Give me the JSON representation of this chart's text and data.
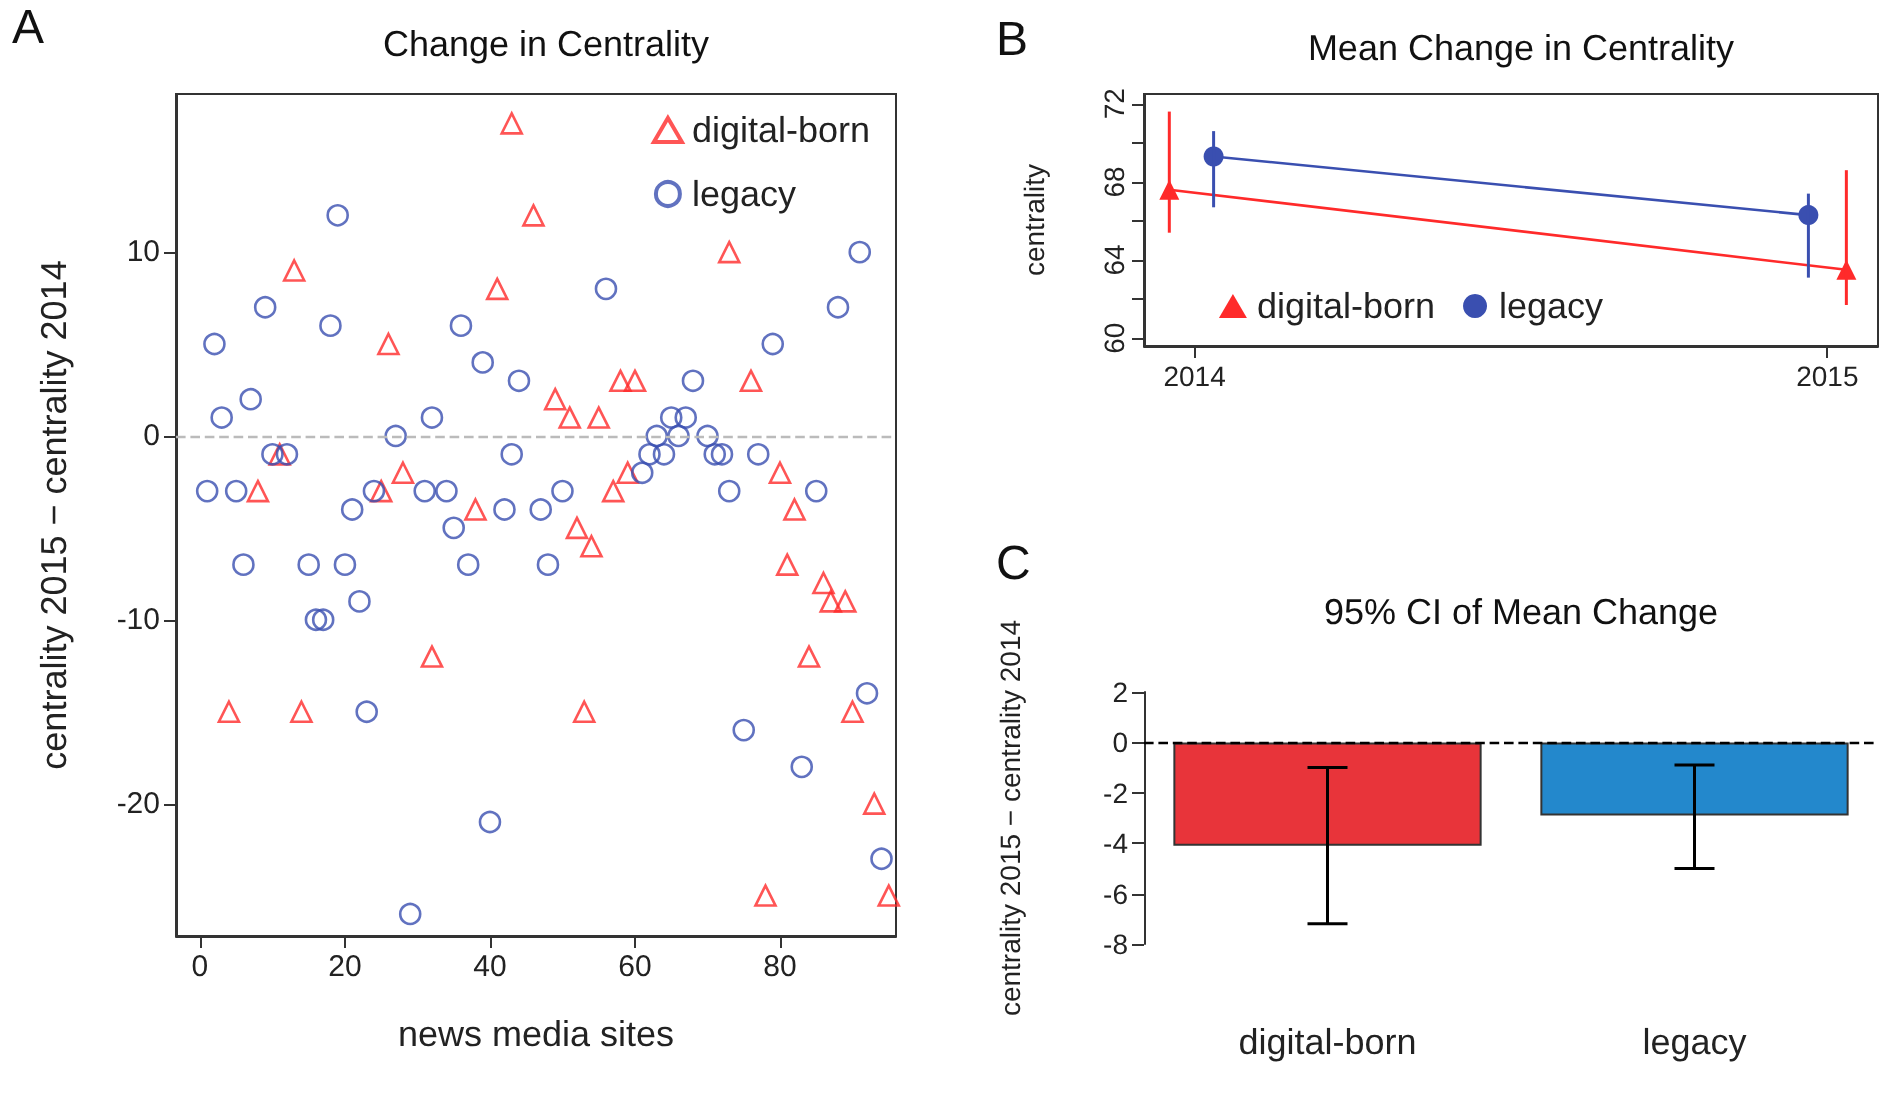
{
  "chart_data": [
    {
      "type": "scatter",
      "title": "Change in Centrality",
      "xlabel": "news media sites",
      "ylabel": "centrality 2015 − centrality 2014",
      "annotations": [
        "A"
      ],
      "xlim": [
        -3.3,
        96
      ],
      "xticks": [
        0,
        20,
        40,
        60,
        80
      ],
      "ylim": [
        -27.2,
        18.6
      ],
      "yticks": [
        -20,
        -10,
        0,
        10
      ],
      "legend": "top right",
      "ref_lines": [
        {
          "axis": "y",
          "value": 0,
          "color": "#bbbbbb",
          "line_style": "dashed"
        }
      ],
      "series": [
        {
          "name": "digital-born",
          "color": "#ff2a2a",
          "marker": "triangle",
          "x": [
            4,
            8,
            11,
            13,
            14,
            25,
            26,
            28,
            32,
            38,
            41,
            43,
            46,
            49,
            51,
            52,
            53,
            54,
            55,
            57,
            58,
            59,
            60,
            73,
            76,
            78,
            80,
            81,
            82,
            84,
            86,
            87,
            89,
            90,
            93,
            95
          ],
          "values": [
            -15,
            -3,
            -1,
            9,
            -15,
            -3,
            5,
            -2,
            -12,
            -4,
            8,
            17,
            12,
            2,
            1,
            -5,
            -15,
            -6,
            1,
            -3,
            3,
            -2,
            3,
            10,
            3,
            -25,
            -2,
            -7,
            -4,
            -12,
            -8,
            -9,
            -9,
            -15,
            -20,
            -25
          ]
        },
        {
          "name": "legacy",
          "color": "#3a4fb0",
          "marker": "circle",
          "x": [
            1,
            2,
            3,
            5,
            6,
            7,
            9,
            10,
            12,
            15,
            16,
            17,
            18,
            19,
            20,
            21,
            22,
            23,
            24,
            27,
            29,
            31,
            32,
            34,
            35,
            36,
            37,
            39,
            40,
            42,
            43,
            44,
            47,
            48,
            50,
            56,
            61,
            62,
            63,
            64,
            65,
            66,
            67,
            68,
            70,
            71,
            72,
            73,
            75,
            77,
            79,
            83,
            85,
            88,
            91,
            92,
            94
          ],
          "values": [
            -3,
            5,
            1,
            -3,
            -7,
            2,
            7,
            -1,
            -1,
            -7,
            -10,
            -10,
            6,
            12,
            -7,
            -4,
            -9,
            -15,
            -3,
            0,
            -26,
            -3,
            1,
            -3,
            -5,
            6,
            -7,
            4,
            -21,
            -4,
            -1,
            3,
            -4,
            -7,
            -3,
            8,
            -2,
            -1,
            0,
            -1,
            1,
            0,
            1,
            3,
            0,
            -1,
            -1,
            -3,
            -16,
            -1,
            5,
            -18,
            -3,
            7,
            10,
            -14,
            -23
          ]
        }
      ]
    },
    {
      "type": "line",
      "title": "Mean Change in Centrality",
      "ylabel": "centrality",
      "annotations": [
        "B"
      ],
      "xlim": [
        2013.92,
        2015.08
      ],
      "xticks": [
        2014,
        2015
      ],
      "ylim": [
        59.6,
        72.5
      ],
      "yticks": [
        60,
        {
          "value": 62,
          "label": null
        },
        64,
        {
          "value": 66,
          "label": null
        },
        68,
        {
          "value": 70,
          "label": null
        },
        72
      ],
      "legend": "bottom",
      "series": [
        {
          "name": "digital-born",
          "color": "#ff2a2a",
          "marker": "triangle",
          "x": [
            2013.96,
            2015.03
          ],
          "values": [
            67.6,
            63.5
          ],
          "errors": [
            [
              65.4,
              71.6
            ],
            [
              61.7,
              68.6
            ]
          ]
        },
        {
          "name": "legacy",
          "color": "#3a4fb0",
          "marker": "circle",
          "x": [
            2014.03,
            2014.97
          ],
          "values": [
            69.3,
            66.3
          ],
          "errors": [
            [
              66.7,
              70.6
            ],
            [
              63.1,
              67.4
            ]
          ]
        }
      ]
    },
    {
      "type": "bar",
      "title": "95% CI of Mean Change",
      "ylabel": "centrality 2015 − centrality 2014",
      "annotations": [
        "C"
      ],
      "categories": [
        "digital-born",
        "legacy"
      ],
      "values": [
        -4.1,
        -2.9
      ],
      "colors": [
        "#e8343a",
        "#2388cc"
      ],
      "errors": [
        [
          -7.2,
          -1.0
        ],
        [
          -5.0,
          -0.9
        ]
      ],
      "ylim": [
        -8,
        2
      ],
      "yticks": [
        -8,
        -6,
        -4,
        -2,
        0,
        2
      ],
      "ref_lines": [
        {
          "axis": "y",
          "value": 0,
          "color": "#000000",
          "line_style": "dashed"
        }
      ]
    }
  ]
}
